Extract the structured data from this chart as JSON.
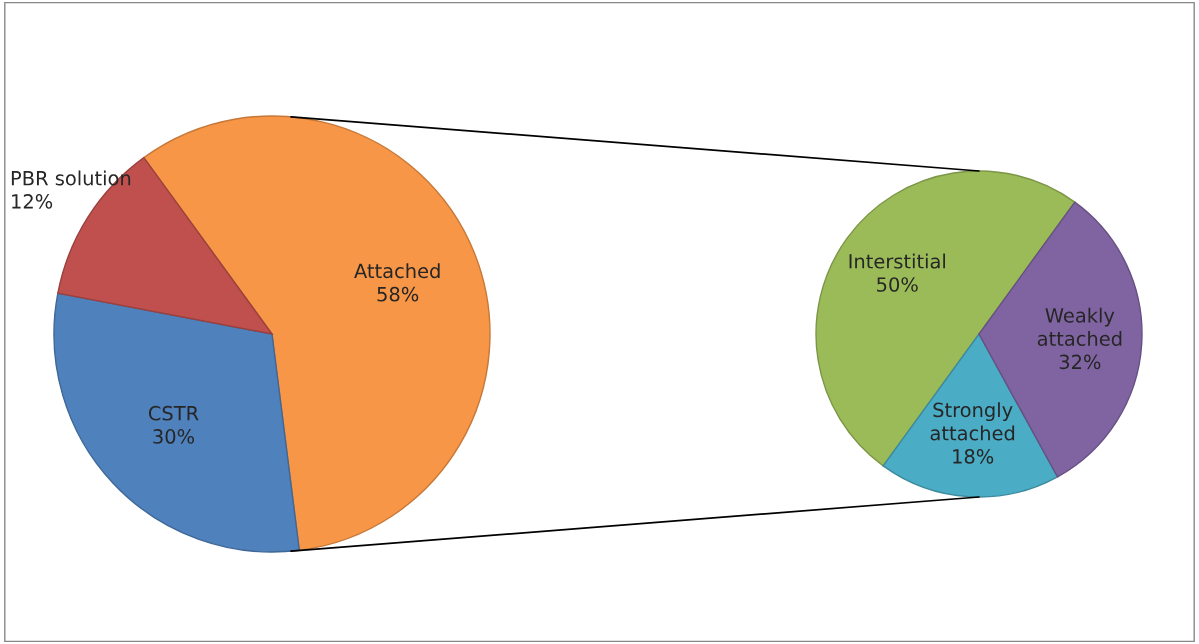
{
  "chart_data": [
    {
      "type": "pie",
      "categories": [
        "Attached",
        "CSTR",
        "PBR solution"
      ],
      "values": [
        58,
        30,
        12
      ],
      "value_labels": [
        "58%",
        "30%",
        "12%"
      ],
      "colors": [
        "#f79646",
        "#4f81bd",
        "#c0504d"
      ]
    },
    {
      "type": "pie",
      "categories": [
        "Interstitial",
        "Strongly attached",
        "Weakly attached"
      ],
      "values": [
        50,
        18,
        32
      ],
      "value_labels": [
        "50%",
        "18%",
        "32%"
      ],
      "colors": [
        "#9bbb59",
        "#4bacc6",
        "#8064a2"
      ]
    }
  ]
}
